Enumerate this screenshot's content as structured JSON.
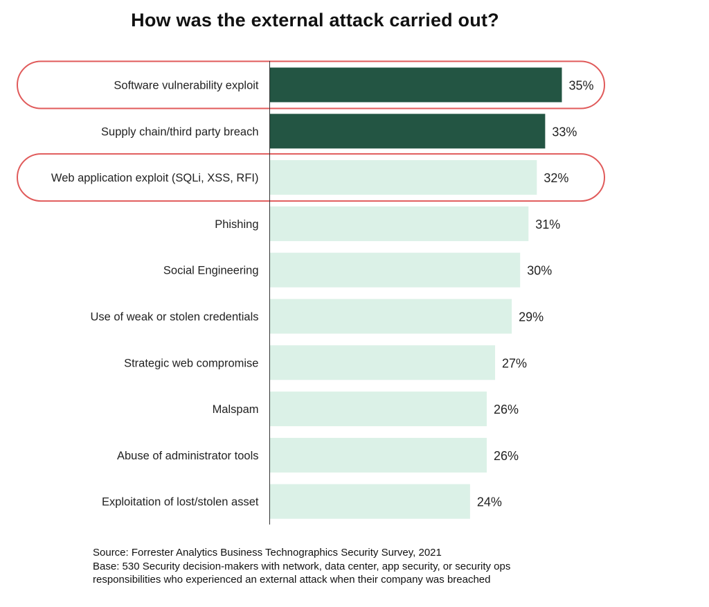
{
  "chart_data": {
    "type": "bar",
    "orientation": "horizontal",
    "title": "How was the external attack carried out?",
    "categories": [
      "Software vulnerability exploit",
      "Supply chain/third party breach",
      "Web application exploit (SQLi, XSS, RFI)",
      "Phishing",
      "Social Engineering",
      "Use of weak or stolen credentials",
      "Strategic web compromise",
      "Malspam",
      "Abuse of administrator tools",
      "Exploitation of lost/stolen asset"
    ],
    "values": [
      35,
      33,
      32,
      31,
      30,
      29,
      27,
      26,
      26,
      24
    ],
    "value_labels": [
      "35%",
      "33%",
      "32%",
      "31%",
      "30%",
      "29%",
      "27%",
      "26%",
      "26%",
      "24%"
    ],
    "unit": "%",
    "xlim": [
      0,
      35
    ],
    "bar_colors": [
      "#235543",
      "#235543",
      "#dbf1e7",
      "#dbf1e7",
      "#dbf1e7",
      "#dbf1e7",
      "#dbf1e7",
      "#dbf1e7",
      "#dbf1e7",
      "#dbf1e7"
    ],
    "highlighted_categories": [
      "Software vulnerability exploit",
      "Web application exploit (SQLi, XSS, RFI)"
    ],
    "highlight_color": "#e05a5a",
    "axis_line_color": "#333333",
    "grid": false,
    "legend": "none"
  },
  "footnote": {
    "source": "Source: Forrester Analytics Business Technographics Security Survey, 2021",
    "base_line1": "Base: 530 Security decision-makers with network, data center, app security, or security ops",
    "base_line2": "responsibilities who experienced an external attack when their company was breached"
  }
}
